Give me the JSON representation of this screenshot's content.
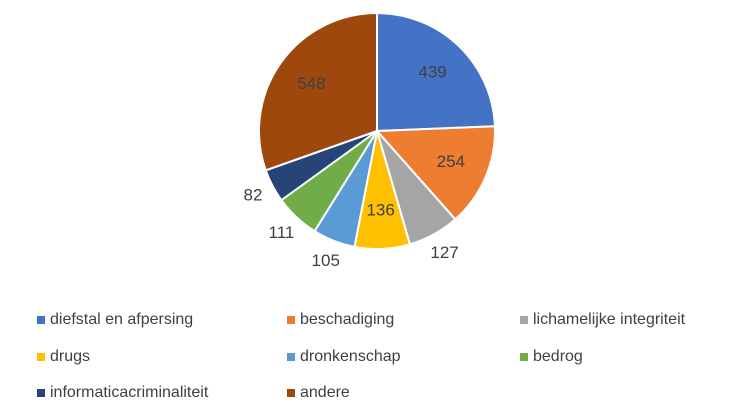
{
  "chart_data": {
    "type": "pie",
    "categories": [
      "diefstal en afpersing",
      "beschadiging",
      "lichamelijke integriteit",
      "drugs",
      "dronkenschap",
      "bedrog",
      "informaticacriminaliteit",
      "andere"
    ],
    "values": [
      439,
      254,
      127,
      136,
      105,
      111,
      82,
      548
    ],
    "colors": [
      "#4472c4",
      "#ed7d31",
      "#a5a5a5",
      "#ffc000",
      "#5b9bd5",
      "#70ad47",
      "#264478",
      "#9e480e"
    ],
    "legend": "bottom"
  }
}
